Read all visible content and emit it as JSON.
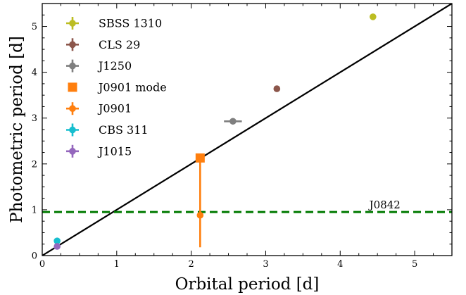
{
  "chart_data": {
    "type": "scatter",
    "xlabel": "Orbital period [d]",
    "ylabel": "Photometric period [d]",
    "xlim": [
      0,
      5.5
    ],
    "ylim": [
      0,
      5.5
    ],
    "xticks": [
      "0",
      "1",
      "2",
      "3",
      "4",
      "5"
    ],
    "yticks": [
      "0",
      "1",
      "2",
      "3",
      "4",
      "5"
    ],
    "grid": false,
    "legend_position": "top-left",
    "series": [
      {
        "name": "SBSS 1310",
        "color": "#bcbd22",
        "marker": "circle",
        "x": 4.44,
        "y": 5.21,
        "xerr": 0,
        "yerr": 0
      },
      {
        "name": "CLS 29",
        "color": "#8c564b",
        "marker": "circle",
        "x": 3.15,
        "y": 3.64,
        "xerr": 0,
        "yerr": 0
      },
      {
        "name": "J1250",
        "color": "#7f7f7f",
        "marker": "circle",
        "x": 2.56,
        "y": 2.93,
        "xerr": 0.12,
        "yerr": 0
      },
      {
        "name": "J0901 mode",
        "color": "#ff7f0e",
        "marker": "square",
        "x": 2.12,
        "y": 2.13,
        "xerr": 0,
        "yerr": 0
      },
      {
        "name": "J0901",
        "color": "#ff7f0e",
        "marker": "circle",
        "x": 2.12,
        "y": 0.88,
        "xerr": 0,
        "yerr_low": 0.7,
        "yerr_high": 1.32
      },
      {
        "name": "CBS 311",
        "color": "#17becf",
        "marker": "circle",
        "x": 0.2,
        "y": 0.32,
        "xerr": 0,
        "yerr": 0
      },
      {
        "name": "J1015",
        "color": "#9467bd",
        "marker": "circle",
        "x": 0.2,
        "y": 0.2,
        "xerr": 0,
        "yerr": 0
      }
    ],
    "reference_lines": [
      {
        "kind": "identity",
        "color": "#000000",
        "style": "solid"
      },
      {
        "kind": "horizontal",
        "y": 0.95,
        "color": "#007a00",
        "style": "dashed",
        "label": "J0842"
      }
    ]
  }
}
